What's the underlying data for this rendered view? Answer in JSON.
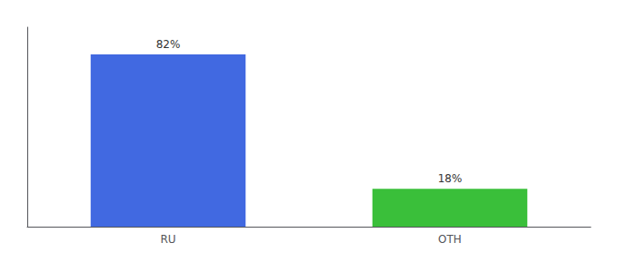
{
  "chart_data": {
    "type": "bar",
    "categories": [
      "RU",
      "OTH"
    ],
    "values": [
      82,
      18
    ],
    "value_labels": [
      "82%",
      "18%"
    ],
    "colors": [
      "#4169e1",
      "#3abf3a"
    ],
    "ylim": [
      0,
      95
    ],
    "data_labels": true,
    "grid": false,
    "tick_labels": "x"
  }
}
